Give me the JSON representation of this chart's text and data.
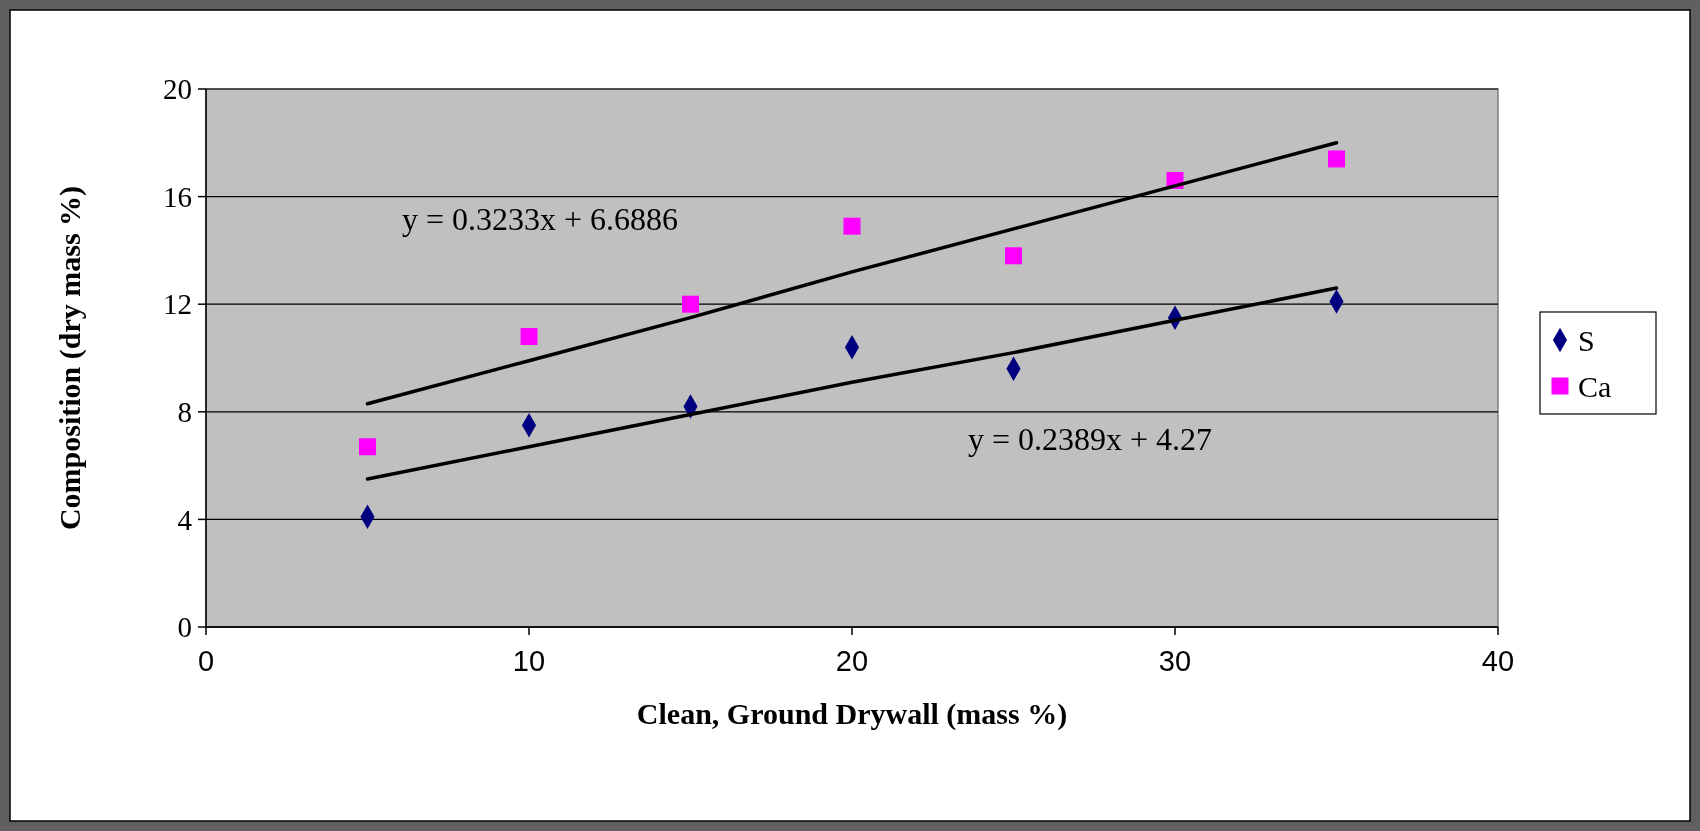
{
  "chart_data": {
    "type": "scatter",
    "xlabel": "Clean, Ground Drywall (mass %)",
    "ylabel": "Composition (dry mass %)",
    "x": [
      5,
      10,
      15,
      20,
      25,
      30,
      35
    ],
    "series": [
      {
        "name": "S",
        "color": "#000080",
        "marker": "diamond",
        "values": [
          4.1,
          7.5,
          8.2,
          10.4,
          9.6,
          11.5,
          12.1
        ]
      },
      {
        "name": "Ca",
        "color": "#ff00ff",
        "marker": "square",
        "values": [
          6.7,
          10.8,
          12.0,
          14.9,
          13.8,
          16.6,
          17.4
        ]
      },
      {
        "type": "line",
        "color": "#000000",
        "values": [
          8.3,
          9.9,
          11.5,
          13.2,
          14.8,
          16.4,
          18.0
        ]
      },
      {
        "type": "line",
        "color": "#000000",
        "values": [
          5.5,
          6.7,
          7.9,
          9.1,
          10.2,
          11.4,
          12.6
        ]
      }
    ],
    "annotations": [
      "y = 0.3233x + 6.6886",
      "y = 0.2389x + 4.27"
    ],
    "xlim": [
      0,
      40
    ],
    "xticks": [
      0,
      10,
      20,
      30,
      40
    ],
    "ylim": [
      0,
      20
    ],
    "yticks": [
      0,
      4,
      8,
      12,
      16,
      20
    ],
    "grid": "y",
    "legend": "right"
  }
}
